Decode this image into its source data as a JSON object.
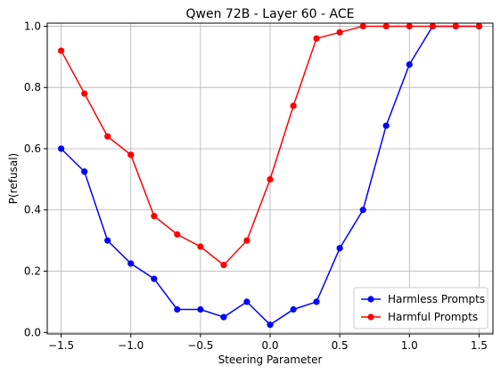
{
  "chart_data": {
    "type": "line",
    "title": "Qwen 72B - Layer 60 - ACE",
    "xlabel": "Steering Parameter",
    "ylabel": "P(refusal)",
    "xlim": [
      -1.6,
      1.6
    ],
    "ylim": [
      -0.005,
      1.01
    ],
    "xticks": [
      -1.5,
      -1.0,
      -0.5,
      0.0,
      0.5,
      1.0,
      1.5
    ],
    "xtick_labels": [
      "−1.5",
      "−1.0",
      "−0.5",
      "0.0",
      "0.5",
      "1.0",
      "1.5"
    ],
    "yticks": [
      0.0,
      0.2,
      0.4,
      0.6,
      0.8,
      1.0
    ],
    "ytick_labels": [
      "0.0",
      "0.2",
      "0.4",
      "0.6",
      "0.8",
      "1.0"
    ],
    "grid": true,
    "legend_position": "lower-right",
    "x": [
      -1.5,
      -1.333,
      -1.167,
      -1.0,
      -0.833,
      -0.667,
      -0.5,
      -0.333,
      -0.167,
      0.0,
      0.167,
      0.333,
      0.5,
      0.667,
      0.833,
      1.0,
      1.167,
      1.333,
      1.5
    ],
    "series": [
      {
        "name": "Harmless Prompts",
        "color": "#0000ff",
        "values": [
          0.6,
          0.525,
          0.3,
          0.225,
          0.175,
          0.075,
          0.075,
          0.05,
          0.1,
          0.025,
          0.075,
          0.1,
          0.275,
          0.4,
          0.675,
          0.875,
          1.0,
          1.0,
          1.0
        ]
      },
      {
        "name": "Harmful Prompts",
        "color": "#ff0000",
        "values": [
          0.92,
          0.78,
          0.64,
          0.58,
          0.38,
          0.32,
          0.28,
          0.22,
          0.3,
          0.5,
          0.74,
          0.96,
          0.98,
          1.0,
          1.0,
          1.0,
          1.0,
          1.0,
          1.0
        ]
      }
    ]
  }
}
